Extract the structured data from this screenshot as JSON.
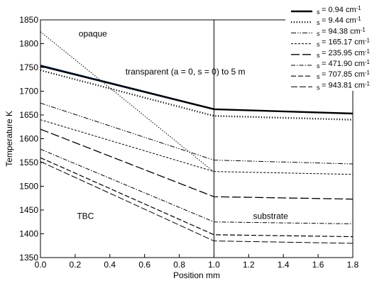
{
  "chart_data": {
    "type": "line",
    "xlabel": "Position mm",
    "ylabel": "Temperature K",
    "xlim": [
      0,
      1.8
    ],
    "ylim": [
      1350,
      1850
    ],
    "x_ticks": [
      "0.0",
      "0.2",
      "0.4",
      "0.6",
      "0.8",
      "1.0",
      "1.2",
      "1.4",
      "1.6",
      "1.8"
    ],
    "y_ticks": [
      "1350",
      "1400",
      "1450",
      "1500",
      "1550",
      "1600",
      "1650",
      "1700",
      "1750",
      "1800",
      "1850"
    ],
    "legend_position": "top-right",
    "grid": false,
    "series": [
      {
        "name": "s = 0.94 cm-1",
        "style": "solid-thick",
        "points": [
          [
            0,
            1753
          ],
          [
            1.0,
            1662
          ],
          [
            1.8,
            1653
          ]
        ]
      },
      {
        "name": "s = 9.44 cm-1",
        "style": "dotted-thick",
        "points": [
          [
            0,
            1744
          ],
          [
            1.0,
            1648
          ],
          [
            1.8,
            1640
          ]
        ]
      },
      {
        "name": "s = 94.38 cm-1",
        "style": "dash-dot-dot",
        "points": [
          [
            0,
            1675
          ],
          [
            1.0,
            1555
          ],
          [
            1.8,
            1547
          ]
        ]
      },
      {
        "name": "s = 165.17 cm-1",
        "style": "short-dash",
        "points": [
          [
            0,
            1640
          ],
          [
            1.0,
            1531
          ],
          [
            1.8,
            1525
          ]
        ]
      },
      {
        "name": "s = 235.95 cm-1",
        "style": "long-dash",
        "points": [
          [
            0,
            1620
          ],
          [
            1.0,
            1478
          ],
          [
            1.8,
            1473
          ]
        ]
      },
      {
        "name": "s = 471.90 cm-1",
        "style": "dash-dot",
        "points": [
          [
            0,
            1578
          ],
          [
            1.0,
            1425
          ],
          [
            1.8,
            1421
          ]
        ]
      },
      {
        "name": "s = 707.85 cm-1",
        "style": "medium-dash",
        "points": [
          [
            0,
            1560
          ],
          [
            1.0,
            1398
          ],
          [
            1.8,
            1394
          ]
        ]
      },
      {
        "name": "s = 943.81 cm-1",
        "style": "long-dash-thin",
        "points": [
          [
            0,
            1552
          ],
          [
            1.0,
            1385
          ],
          [
            1.8,
            1380
          ]
        ]
      }
    ],
    "extra_curves": [
      {
        "label": "opaque",
        "style": "dotted-thin",
        "points": [
          [
            0,
            1825
          ],
          [
            1.0,
            1530
          ]
        ]
      },
      {
        "label": "transparent (a = 0, s = 0) to 5 m",
        "style": "solid-blue",
        "points": [
          [
            0,
            1755
          ],
          [
            1.0,
            1663
          ]
        ]
      }
    ],
    "annotations": {
      "opaque": "opaque",
      "transparent": "transparent (a = 0,   s = 0) to 5   m",
      "tbc": "TBC",
      "substrate": "substrate"
    },
    "interface_x": 1.0
  },
  "legend": [
    {
      "prefix": "s",
      "value": "= 0.94 cm",
      "sup": "-1",
      "style": "solid-thick"
    },
    {
      "prefix": "s",
      "value": "= 9.44 cm",
      "sup": "-1",
      "style": "dotted-thick"
    },
    {
      "prefix": "s",
      "value": "= 94.38 cm",
      "sup": "-1",
      "style": "dash-dot-dot"
    },
    {
      "prefix": "s",
      "value": "= 165.17 cm",
      "sup": "-1",
      "style": "short-dash"
    },
    {
      "prefix": "s",
      "value": "= 235.95 cm",
      "sup": "-1",
      "style": "long-dash"
    },
    {
      "prefix": "s",
      "value": "= 471.90 cm",
      "sup": "-1",
      "style": "dash-dot"
    },
    {
      "prefix": "s",
      "value": "= 707.85 cm",
      "sup": "-1",
      "style": "medium-dash"
    },
    {
      "prefix": "s",
      "value": "= 943.81 cm",
      "sup": "-1",
      "style": "long-dash-thin"
    }
  ]
}
